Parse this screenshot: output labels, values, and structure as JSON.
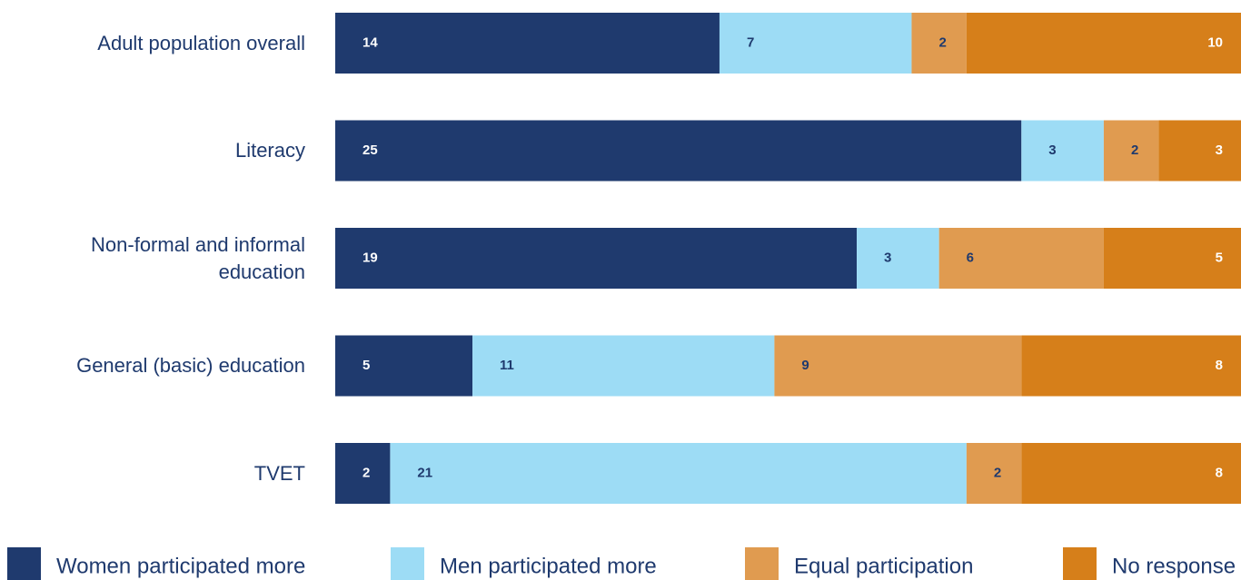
{
  "chart_data": {
    "type": "stacked_bar_horizontal",
    "categories": [
      "Adult population overall",
      "Literacy",
      "Non-formal and informal\neducation",
      "General (basic) education",
      "TVET"
    ],
    "series": [
      {
        "name": "Women participated more",
        "color": "#1f3a6e",
        "label_color": "#ffffff",
        "values": [
          14,
          25,
          19,
          5,
          2
        ]
      },
      {
        "name": "Men participated more",
        "color": "#9ddcf5",
        "label_color": "#1f3a6e",
        "values": [
          7,
          3,
          3,
          11,
          21
        ]
      },
      {
        "name": "Equal participation",
        "color": "#e09b50",
        "label_color": "#1f3a6e",
        "values": [
          2,
          2,
          6,
          9,
          2
        ]
      },
      {
        "name": "No response",
        "color": "#d67f1a",
        "label_color": "#ffffff",
        "values": [
          10,
          3,
          5,
          8,
          8
        ]
      }
    ],
    "xlim": [
      0,
      33
    ],
    "legend": "bottom"
  }
}
